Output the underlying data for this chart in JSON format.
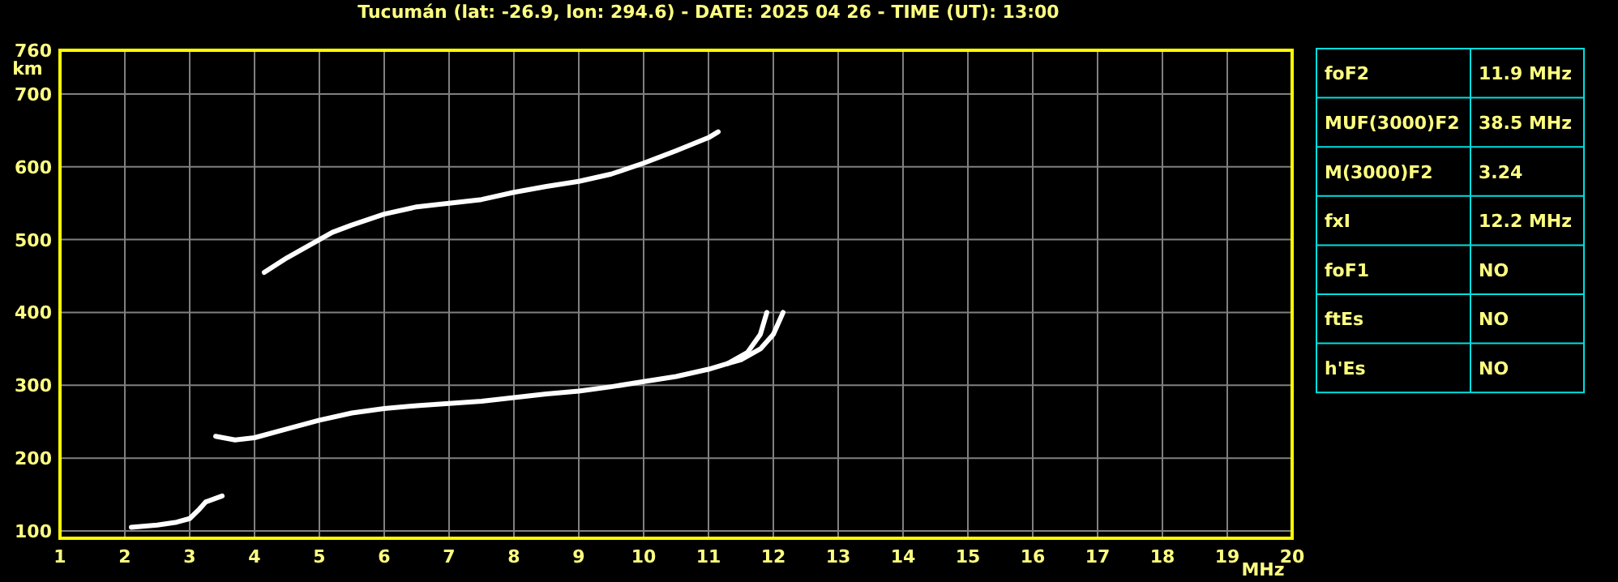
{
  "chart_data": [
    {
      "type": "line",
      "title": "Tucumán (lat: -26.9, lon: 294.6) - DATE: 2025 04 26 - TIME (UT): 13:00",
      "xlabel": "MHz",
      "ylabel": "km",
      "xlim": [
        1,
        20
      ],
      "xticks": [
        1,
        2,
        3,
        4,
        5,
        6,
        7,
        8,
        9,
        10,
        11,
        12,
        13,
        14,
        15,
        16,
        17,
        18,
        19,
        20
      ],
      "ylim": [
        90,
        760
      ],
      "yticks": [
        100,
        200,
        300,
        400,
        500,
        600,
        700,
        760
      ],
      "grid": true,
      "marker": "none",
      "line_style": "solid",
      "series": [
        {
          "color": "#ffffff",
          "x": [
            3.4,
            3.7,
            4.0,
            4.5,
            5,
            5.5,
            6,
            6.5,
            7,
            7.5,
            8,
            8.5,
            9,
            9.5,
            10,
            10.5,
            11,
            11.3,
            11.6,
            11.8,
            11.9
          ],
          "values": [
            230,
            225,
            228,
            240,
            252,
            262,
            268,
            272,
            275,
            278,
            283,
            288,
            292,
            298,
            305,
            312,
            322,
            330,
            345,
            370,
            400
          ]
        },
        {
          "color": "#ffffff",
          "x": [
            11.3,
            11.5,
            11.8,
            12.0,
            12.15
          ],
          "values": [
            330,
            335,
            350,
            370,
            400
          ]
        },
        {
          "color": "#ffffff",
          "x": [
            4.15,
            4.5,
            4.9,
            5.2,
            5.5,
            6,
            6.5,
            7,
            7.5,
            8,
            8.5,
            9,
            9.5,
            10,
            10.5,
            11,
            11.15
          ],
          "values": [
            455,
            475,
            495,
            510,
            520,
            535,
            545,
            550,
            555,
            565,
            573,
            580,
            590,
            605,
            622,
            640,
            648
          ]
        },
        {
          "color": "#ffffff",
          "x": [
            2.1,
            2.5,
            2.8,
            3.0,
            3.15,
            3.25,
            3.5
          ],
          "values": [
            105,
            108,
            112,
            117,
            130,
            140,
            148
          ]
        }
      ]
    },
    {
      "type": "other",
      "annotations": [
        "foF2",
        "11.9 MHz",
        "MUF(3000)F2",
        "38.5 MHz",
        "M(3000)F2",
        "3.24",
        "fxI",
        "12.2 MHz",
        "foF1",
        "NO",
        "ftEs",
        "NO",
        "h'Es",
        "NO"
      ]
    }
  ]
}
